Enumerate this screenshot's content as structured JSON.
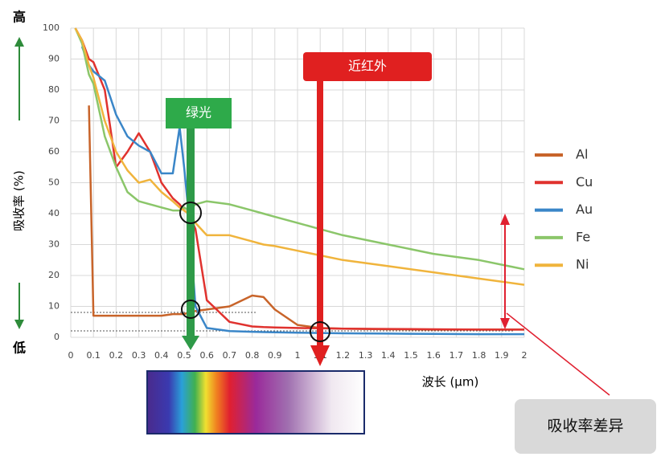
{
  "chart_data": {
    "type": "line",
    "y_label": "吸收率 (%)",
    "x_label": "波长 (µm)",
    "y_high": "高",
    "y_low": "低",
    "annotations": {
      "green": "绿光",
      "nir": "近红外",
      "difference": "吸收率差异"
    },
    "x": [
      0.02,
      0.05,
      0.08,
      0.1,
      0.15,
      0.2,
      0.25,
      0.3,
      0.35,
      0.4,
      0.45,
      0.48,
      0.5,
      0.52,
      0.55,
      0.6,
      0.7,
      0.8,
      0.85,
      0.9,
      1.0,
      1.1,
      1.2,
      1.4,
      1.6,
      1.8,
      2.0
    ],
    "series": [
      {
        "name": "Al",
        "color": "#c8642a",
        "values": [
          null,
          null,
          75,
          7,
          7,
          7,
          7,
          7,
          7,
          7,
          7.5,
          7.5,
          7.5,
          8,
          8.5,
          9,
          10,
          13.5,
          13,
          9,
          4,
          3,
          2.8,
          2.6,
          2.5,
          2.5,
          2.5
        ]
      },
      {
        "name": "Cu",
        "color": "#e0322e",
        "values": [
          100,
          96,
          90,
          89,
          80,
          55,
          60,
          66,
          60,
          50,
          45,
          43,
          41,
          40,
          35,
          12,
          5,
          3.5,
          3.3,
          3.2,
          3,
          2.9,
          2.8,
          2.7,
          2.6,
          2.5,
          2.5
        ]
      },
      {
        "name": "Au",
        "color": "#3a86c8",
        "values": [
          null,
          94,
          88,
          86,
          83,
          72,
          65,
          62,
          60,
          53,
          53,
          68,
          55,
          40,
          10,
          3,
          2,
          1.8,
          1.7,
          1.6,
          1.5,
          1.4,
          1.3,
          1.2,
          1.1,
          1,
          1
        ]
      },
      {
        "name": "Fe",
        "color": "#8bc66a",
        "values": [
          100,
          95,
          85,
          82,
          65,
          55,
          47,
          44,
          43,
          42,
          41,
          41,
          42,
          41,
          43,
          44,
          43,
          41,
          40,
          39,
          37,
          35,
          33,
          30,
          27,
          25,
          22
        ]
      },
      {
        "name": "Ni",
        "color": "#f0b43c",
        "values": [
          100,
          96,
          88,
          84,
          70,
          60,
          54,
          50,
          51,
          47,
          44,
          42,
          41,
          40,
          37,
          33,
          33,
          31,
          30,
          29.5,
          28,
          26.5,
          25,
          23,
          21,
          19,
          17
        ]
      }
    ],
    "xlim": [
      0,
      2
    ],
    "ylim": [
      0,
      100
    ],
    "xticks": [
      0,
      0.1,
      0.2,
      0.3,
      0.4,
      0.5,
      0.6,
      0.7,
      0.8,
      0.9,
      1,
      1.1,
      1.2,
      1.3,
      1.4,
      1.5,
      1.6,
      1.7,
      1.8,
      1.9,
      2
    ],
    "yticks": [
      0,
      10,
      20,
      30,
      40,
      50,
      60,
      70,
      80,
      90,
      100
    ],
    "grid": true
  }
}
